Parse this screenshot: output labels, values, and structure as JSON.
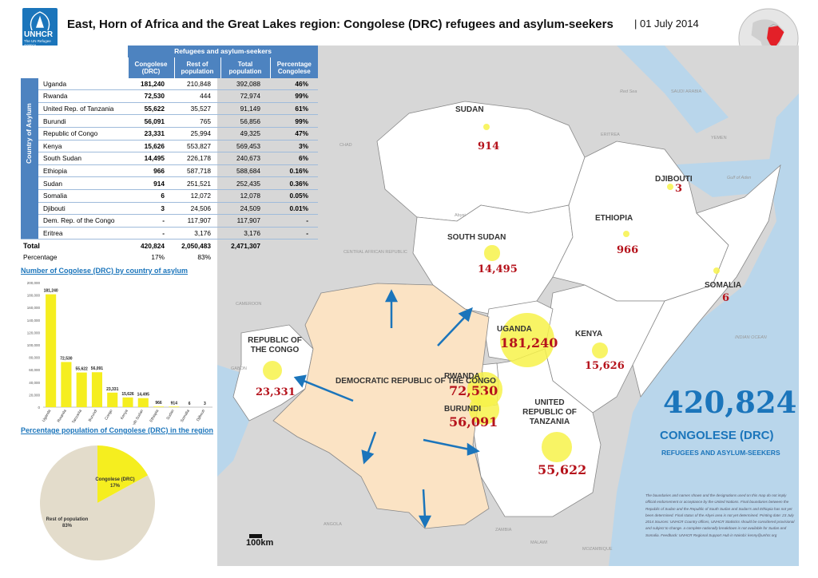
{
  "header": {
    "logo_name": "UNHCR",
    "logo_sub": "The UN Refugee Agency",
    "title": "East, Horn of Africa and the Great Lakes region: Congolese (DRC) refugees and asylum-seekers",
    "date": "| 01 July 2014"
  },
  "table": {
    "group_header": "Refugees and asylum-seekers",
    "columns": [
      "Congolese (DRC)",
      "Rest of population",
      "Total population",
      "Percentage Congolese"
    ],
    "side_label": "Country of Asylum",
    "rows": [
      {
        "country": "Uganda",
        "congolese": "181,240",
        "rest": "210,848",
        "total": "392,088",
        "pct": "46%"
      },
      {
        "country": "Rwanda",
        "congolese": "72,530",
        "rest": "444",
        "total": "72,974",
        "pct": "99%"
      },
      {
        "country": "United Rep. of Tanzania",
        "congolese": "55,622",
        "rest": "35,527",
        "total": "91,149",
        "pct": "61%"
      },
      {
        "country": "Burundi",
        "congolese": "56,091",
        "rest": "765",
        "total": "56,856",
        "pct": "99%"
      },
      {
        "country": "Republic of Congo",
        "congolese": "23,331",
        "rest": "25,994",
        "total": "49,325",
        "pct": "47%"
      },
      {
        "country": "Kenya",
        "congolese": "15,626",
        "rest": "553,827",
        "total": "569,453",
        "pct": "3%"
      },
      {
        "country": "South Sudan",
        "congolese": "14,495",
        "rest": "226,178",
        "total": "240,673",
        "pct": "6%"
      },
      {
        "country": "Ethiopia",
        "congolese": "966",
        "rest": "587,718",
        "total": "588,684",
        "pct": "0.16%"
      },
      {
        "country": "Sudan",
        "congolese": "914",
        "rest": "251,521",
        "total": "252,435",
        "pct": "0.36%"
      },
      {
        "country": "Somalia",
        "congolese": "6",
        "rest": "12,072",
        "total": "12,078",
        "pct": "0.05%"
      },
      {
        "country": "Djibouti",
        "congolese": "3",
        "rest": "24,506",
        "total": "24,509",
        "pct": "0.01%"
      },
      {
        "country": "Dem. Rep. of the Congo",
        "congolese": "-",
        "rest": "117,907",
        "total": "117,907",
        "pct": "-"
      },
      {
        "country": "Eritrea",
        "congolese": "-",
        "rest": "3,176",
        "total": "3,176",
        "pct": "-"
      }
    ],
    "total": {
      "label": "Total",
      "congolese": "420,824",
      "rest": "2,050,483",
      "total": "2,471,307"
    },
    "percentage": {
      "label": "Percentage",
      "congolese": "17%",
      "rest": "83%"
    }
  },
  "chart_data": [
    {
      "type": "bar",
      "title": "Number of Cogolese (DRC) by country of asylum",
      "categories": [
        "Uganda",
        "Rwanda",
        "Tanzania",
        "Burundi",
        "Congo",
        "Kenya",
        "South Sudan",
        "Ethiopia",
        "Sudan",
        "Somalia",
        "Djibouti"
      ],
      "values": [
        181240,
        72530,
        55622,
        56091,
        23331,
        15626,
        14495,
        966,
        914,
        6,
        3
      ],
      "data_labels": [
        "181,240",
        "72,530",
        "55,622",
        "56,091",
        "23,331",
        "15,626",
        "14,495",
        "966",
        "914",
        "6",
        "3"
      ],
      "ylim": [
        0,
        200000
      ],
      "yticks": [
        "0",
        "20,000",
        "40,000",
        "60,000",
        "80,000",
        "100,000",
        "120,000",
        "140,000",
        "160,000",
        "180,000",
        "200,000"
      ],
      "color": "#f5ee1f"
    },
    {
      "type": "pie",
      "title": "Percentage population of Congolese (DRC) in the region",
      "slices": [
        {
          "label": "Congolese (DRC)",
          "pct_label": "17%",
          "value": 17,
          "color": "#f5ee1f"
        },
        {
          "label": "Rest of population",
          "pct_label": "83%",
          "value": 83,
          "color": "#e3dccb"
        }
      ]
    }
  ],
  "map": {
    "drc_label": "DEMOCRATIC REPUBLIC OF THE CONGO",
    "countries": [
      {
        "name": "SUDAN",
        "value": "914",
        "size": 914
      },
      {
        "name": "SOUTH SUDAN",
        "value": "14,495",
        "size": 14495
      },
      {
        "name": "ETHIOPIA",
        "value": "966",
        "size": 966
      },
      {
        "name": "DJIBOUTI",
        "value": "3",
        "size": 3
      },
      {
        "name": "SOMALIA",
        "value": "6",
        "size": 6
      },
      {
        "name": "KENYA",
        "value": "15,626",
        "size": 15626
      },
      {
        "name": "UGANDA",
        "value": "181,240",
        "size": 181240
      },
      {
        "name": "RWANDA",
        "value": "72,530",
        "size": 72530
      },
      {
        "name": "BURUNDI",
        "value": "56,091",
        "size": 56091
      },
      {
        "name": "UNITED REPUBLIC OF TANZANIA",
        "value": "55,622",
        "size": 55622
      },
      {
        "name": "REPUBLIC OF THE CONGO",
        "value": "23,331",
        "size": 23331
      }
    ],
    "background_labels": [
      "CHAD",
      "CENTRAL AFRICAN REPUBLIC",
      "CAMEROON",
      "GABON",
      "ANGOLA",
      "ZAMBIA",
      "MALAWI",
      "MOZAMBIQUE",
      "ERITREA",
      "YEMEN",
      "SAUDI ARABIA",
      "Red Sea",
      "Gulf of Aden",
      "INDIAN OCEAN",
      "Abyei"
    ],
    "scale": "100km"
  },
  "summary": {
    "total": "420,824",
    "line1": "CONGOLESE (DRC)",
    "line2": "REFUGEES AND ASYLUM-SEEKERS"
  },
  "disclaimer": "The boundaries and names shown and the designations used on this map do not imply official endorsement or acceptance by the United Nations. Final boundaries between the Republic of Sudan and the Republic of South Sudan and Sudan's and Ethiopia has not yet been determined. Final status of the Abyei area is not yet determined. Printing date: 23 July 2014 Sources: UNHCR Country offices, UNHCR Statistics should be considered provisional and subject to change. a complete nationally breakdown is not available for Sudan and Somalia. Feedback: UNHCR Regional Support Hub in Nairobi: kenny@unhcr.org"
}
